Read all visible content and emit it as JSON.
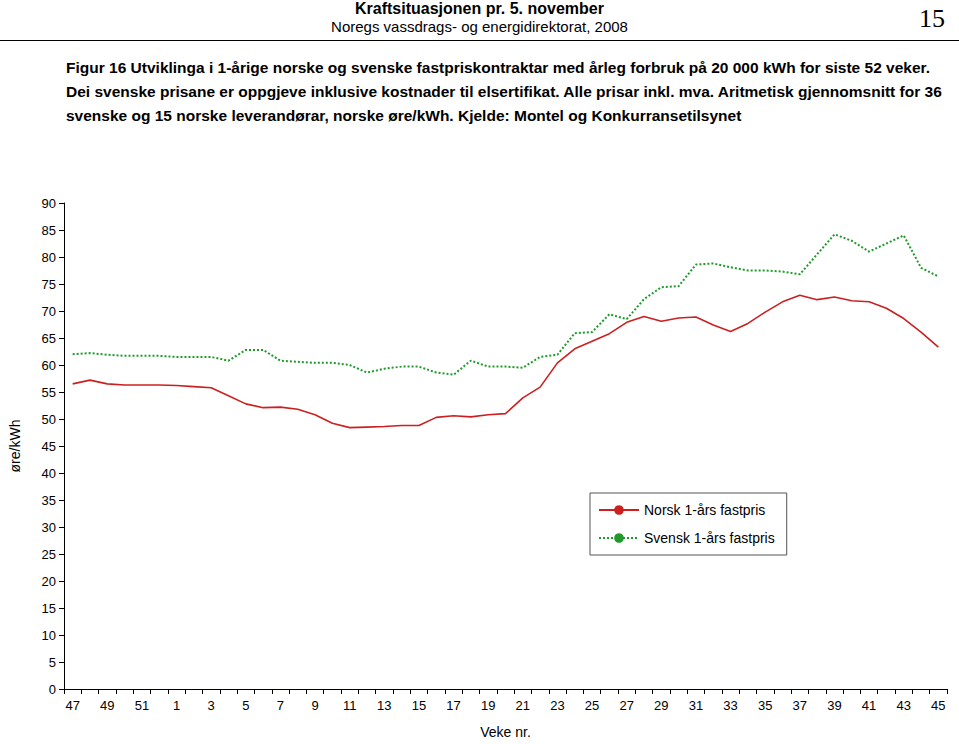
{
  "header": {
    "title": "Kraftsituasjonen pr. 5. november",
    "subtitle": "Noregs vassdrags- og energidirektorat, 2008",
    "page": "15"
  },
  "chart_data": {
    "type": "line",
    "title": "Figur 16 Utviklinga i 1-årige norske og svenske fastpriskontraktar med årleg forbruk på 20 000 kWh for siste 52 veker.\nDei svenske prisane er oppgjeve inklusive kostnader til elsertifikat. Alle prisar inkl. mva. Aritmetisk gjennomsnitt for 36\nsvenske og 15 norske leverandørar, norske øre/kWh. Kjelde: Montel og Konkurransetilsynet",
    "x_label": "Veke nr.",
    "y_label": "øre/kWh",
    "categories": [
      "47",
      null,
      "49",
      null,
      "51",
      null,
      "1",
      null,
      "3",
      null,
      "5",
      null,
      "7",
      null,
      "9",
      null,
      "11",
      null,
      "13",
      null,
      "15",
      null,
      "17",
      null,
      "19",
      null,
      "21",
      null,
      "23",
      null,
      "25",
      null,
      "27",
      null,
      "29",
      null,
      "31",
      null,
      "33",
      null,
      "35",
      null,
      "37",
      null,
      "39",
      null,
      "41",
      null,
      "43",
      null,
      "45"
    ],
    "series": [
      {
        "name": "Norsk 1-års fastpris",
        "color": "#cc2020",
        "line_style": "solid",
        "values": [
          56.5,
          57.2,
          56.5,
          56.3,
          56.3,
          56.3,
          56.2,
          56.0,
          55.8,
          54.3,
          52.8,
          52.1,
          52.2,
          51.8,
          50.8,
          49.2,
          48.4,
          48.5,
          48.6,
          48.8,
          48.8,
          50.3,
          50.6,
          50.4,
          50.8,
          51.0,
          53.9,
          55.9,
          60.4,
          63.0,
          64.4,
          65.8,
          67.9,
          69.0,
          68.1,
          68.7,
          68.9,
          67.4,
          66.2,
          67.7,
          69.8,
          71.7,
          72.9,
          72.1,
          72.6,
          71.9,
          71.7,
          70.5,
          68.6,
          66.1,
          63.3
        ]
      },
      {
        "name": "Svensk 1-års fastpris",
        "color": "#1f9a2a",
        "line_style": "dotted",
        "values": [
          62.0,
          62.2,
          61.9,
          61.7,
          61.7,
          61.7,
          61.5,
          61.5,
          61.5,
          60.8,
          62.8,
          62.8,
          60.8,
          60.6,
          60.4,
          60.4,
          60.0,
          58.6,
          59.3,
          59.7,
          59.7,
          58.6,
          58.2,
          60.8,
          59.7,
          59.7,
          59.5,
          61.5,
          61.9,
          65.9,
          66.1,
          69.4,
          68.5,
          72.2,
          74.4,
          74.6,
          78.6,
          78.8,
          78.1,
          77.5,
          77.5,
          77.3,
          76.8,
          80.5,
          84.2,
          83.0,
          81.0,
          82.5,
          84.0,
          78.0,
          76.4
        ]
      }
    ],
    "ylim": [
      0,
      90
    ],
    "yticks": [
      0,
      5,
      10,
      15,
      20,
      25,
      30,
      35,
      40,
      45,
      50,
      55,
      60,
      65,
      70,
      75,
      80,
      85,
      90
    ],
    "grid": false,
    "legend": "right"
  }
}
